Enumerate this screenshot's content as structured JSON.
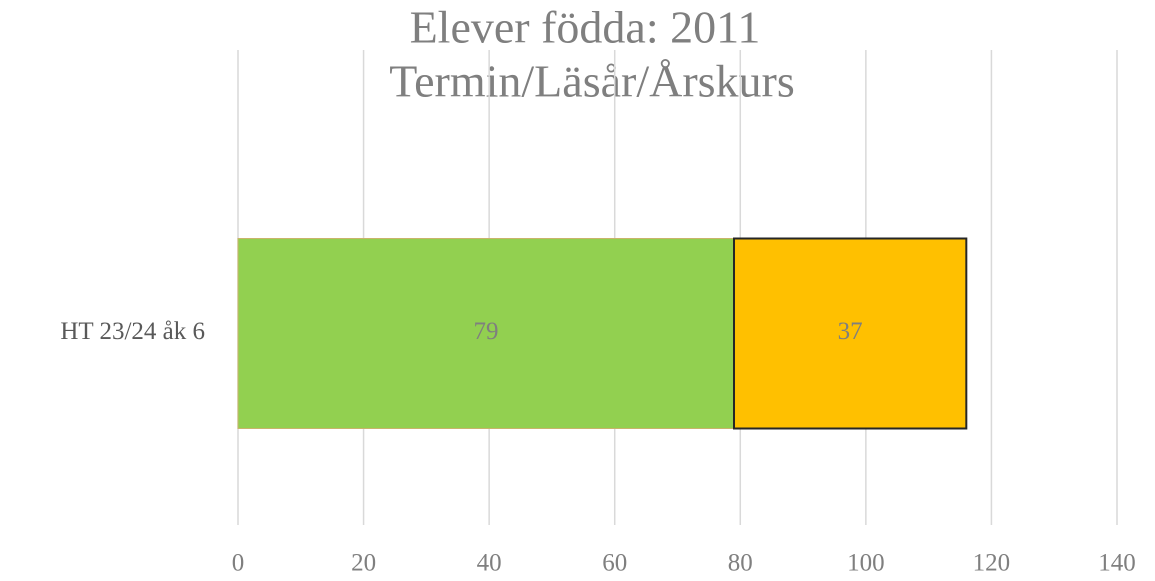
{
  "chart_data": {
    "type": "bar",
    "orientation": "horizontal",
    "stacked": true,
    "title": "Elever födda: 2011",
    "subtitle": "Termin/Läsår/Årskurs",
    "categories": [
      "HT 23/24 åk 6"
    ],
    "series": [
      {
        "color": "#92d050",
        "values": [
          79
        ]
      },
      {
        "color": "#ffc000",
        "values": [
          37
        ]
      }
    ],
    "xlim": [
      0,
      140
    ],
    "xticks": [
      0,
      20,
      40,
      60,
      80,
      100,
      120,
      140
    ],
    "grid": true
  }
}
